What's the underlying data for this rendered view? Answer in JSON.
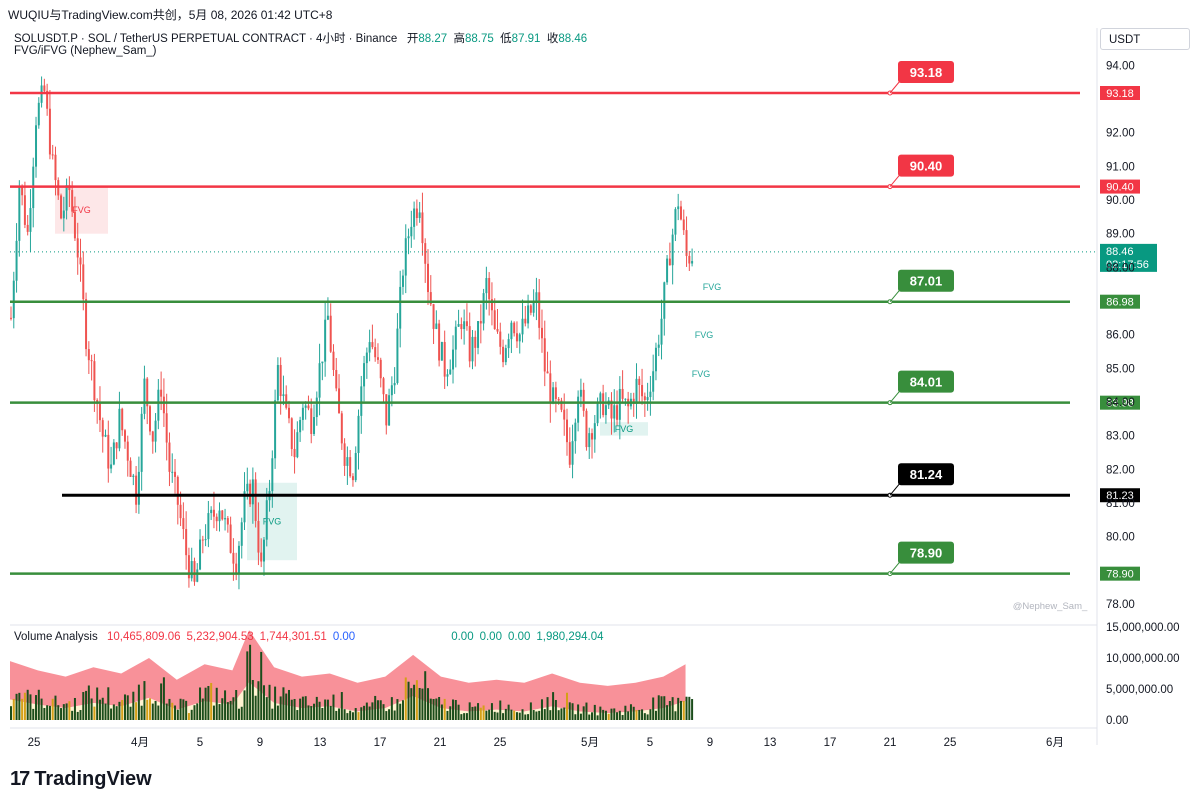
{
  "header": {
    "text": "WUQIU与TradingView.com共创，5月 08, 2026 01:42 UTC+8"
  },
  "symbol": {
    "name": "SOLUSDT.P · SOL / TetherUS PERPETUAL CONTRACT · 4小时 · Binance",
    "open_label": "开",
    "open": "88.27",
    "high_label": "高",
    "high": "88.75",
    "low_label": "低",
    "low": "87.91",
    "close_label": "收",
    "close": "88.46"
  },
  "indicator": {
    "name": "FVG/iFVG (Nephew_Sam_)"
  },
  "currency": {
    "label": "USDT"
  },
  "watermark": "@Nephew_Sam_",
  "volume_legend": {
    "title": "Volume Analysis",
    "values": [
      {
        "text": "10,465,809.06",
        "color": "#f23645"
      },
      {
        "text": "5,232,904.53",
        "color": "#f23645"
      },
      {
        "text": "1,744,301.51",
        "color": "#f23645"
      },
      {
        "text": "0.00",
        "color": "#2962ff"
      },
      {
        "text": "0.00",
        "color": "#089981"
      },
      {
        "text": "0.00",
        "color": "#089981"
      },
      {
        "text": "0.00",
        "color": "#089981"
      },
      {
        "text": "1,980,294.04",
        "color": "#089981"
      }
    ]
  },
  "logo": {
    "text": "TradingView",
    "mark": "17"
  },
  "colors": {
    "up": "#26a69a",
    "down": "#ef5350",
    "resistance": "#f23645",
    "support": "#388e3c",
    "pivot": "#000000"
  },
  "chart_data": {
    "type": "candlestick",
    "price_axis": {
      "min": 78.0,
      "max": 94.0,
      "ticks": [
        "94.00",
        "92.00",
        "91.00",
        "90.00",
        "89.00",
        "88.00",
        "86.00",
        "85.00",
        "84.00",
        "83.00",
        "82.00",
        "81.00",
        "80.00",
        "78.00"
      ]
    },
    "time_axis": {
      "ticks": [
        "25",
        "4月",
        "5",
        "9",
        "13",
        "17",
        "21",
        "25",
        "5月",
        "5",
        "9",
        "13",
        "17",
        "21",
        "25",
        "6月"
      ]
    },
    "volume_axis": {
      "ticks": [
        "15,000,000.00",
        "10,000,000.00",
        "5,000,000.00",
        "0.00"
      ]
    },
    "levels": [
      {
        "price": 93.18,
        "tag": "93.18",
        "axis_label": "93.18",
        "kind": "resistance"
      },
      {
        "price": 90.4,
        "tag": "90.40",
        "axis_label": "90.40",
        "kind": "resistance"
      },
      {
        "price": 86.98,
        "tag": "87.01",
        "axis_label": "86.98",
        "kind": "support"
      },
      {
        "price": 83.98,
        "tag": "84.01",
        "axis_label": "83.98",
        "kind": "support"
      },
      {
        "price": 81.23,
        "tag": "81.24",
        "axis_label": "81.23",
        "kind": "pivot"
      },
      {
        "price": 78.9,
        "tag": "78.90",
        "axis_label": "78.90",
        "kind": "support"
      }
    ],
    "last_price": {
      "price": 88.46,
      "label": "88.46",
      "countdown": "02:17:56"
    },
    "fvg_zones": [
      {
        "label": "FVG",
        "kind": "bearish",
        "price_top": 90.4,
        "price_bottom": 89.0
      },
      {
        "label": "FVG",
        "kind": "bullish",
        "price_top": 81.6,
        "price_bottom": 79.3
      },
      {
        "label": "FVG",
        "kind": "bullish",
        "price_top": 83.4,
        "price_bottom": 83.0
      }
    ],
    "fvg_labels": [
      "FVG",
      "FVG",
      "FVG"
    ],
    "close_path": [
      [
        0,
        86.5
      ],
      [
        3,
        90.5
      ],
      [
        6,
        89.0
      ],
      [
        9,
        92.5
      ],
      [
        12,
        93.2
      ],
      [
        15,
        91.0
      ],
      [
        18,
        89.5
      ],
      [
        21,
        90.3
      ],
      [
        24,
        88.5
      ],
      [
        27,
        86.0
      ],
      [
        30,
        84.5
      ],
      [
        33,
        83.0
      ],
      [
        36,
        82.0
      ],
      [
        39,
        83.5
      ],
      [
        42,
        82.5
      ],
      [
        45,
        81.3
      ],
      [
        48,
        84.5
      ],
      [
        51,
        83.0
      ],
      [
        54,
        84.5
      ],
      [
        57,
        82.0
      ],
      [
        60,
        81.0
      ],
      [
        63,
        79.5
      ],
      [
        66,
        78.5
      ],
      [
        69,
        80.0
      ],
      [
        72,
        80.5
      ],
      [
        75,
        81.0
      ],
      [
        78,
        80.0
      ],
      [
        81,
        79.3
      ],
      [
        84,
        81.0
      ],
      [
        87,
        81.5
      ],
      [
        90,
        79.0
      ],
      [
        93,
        81.5
      ],
      [
        96,
        85.0
      ],
      [
        99,
        83.5
      ],
      [
        102,
        82.5
      ],
      [
        105,
        84.0
      ],
      [
        108,
        83.5
      ],
      [
        111,
        85.0
      ],
      [
        114,
        86.5
      ],
      [
        117,
        84.0
      ],
      [
        120,
        82.5
      ],
      [
        123,
        82.0
      ],
      [
        126,
        84.5
      ],
      [
        129,
        86.0
      ],
      [
        132,
        85.0
      ],
      [
        135,
        83.5
      ],
      [
        138,
        85.0
      ],
      [
        141,
        88.0
      ],
      [
        144,
        89.5
      ],
      [
        147,
        90.0
      ],
      [
        150,
        87.5
      ],
      [
        153,
        86.0
      ],
      [
        156,
        85.0
      ],
      [
        159,
        85.5
      ],
      [
        162,
        86.5
      ],
      [
        165,
        85.5
      ],
      [
        168,
        86.0
      ],
      [
        171,
        87.5
      ],
      [
        174,
        86.0
      ],
      [
        177,
        85.5
      ],
      [
        180,
        86.5
      ],
      [
        183,
        86.0
      ],
      [
        186,
        86.5
      ],
      [
        189,
        87.0
      ],
      [
        192,
        85.0
      ],
      [
        195,
        84.0
      ],
      [
        198,
        83.5
      ],
      [
        201,
        82.5
      ],
      [
        204,
        84.5
      ],
      [
        207,
        83.0
      ],
      [
        210,
        83.5
      ],
      [
        213,
        84.0
      ],
      [
        216,
        83.5
      ],
      [
        219,
        84.0
      ],
      [
        222,
        83.8
      ],
      [
        225,
        84.5
      ],
      [
        228,
        84.0
      ],
      [
        231,
        85.0
      ],
      [
        234,
        86.5
      ],
      [
        237,
        88.5
      ],
      [
        240,
        90.0
      ],
      [
        243,
        88.3
      ],
      [
        246,
        88.46
      ]
    ],
    "volume": [
      {
        "x": 0,
        "v": 6.0
      },
      {
        "x": 10,
        "v": 4.5
      },
      {
        "x": 20,
        "v": 3.5
      },
      {
        "x": 30,
        "v": 5.0
      },
      {
        "x": 40,
        "v": 4.0
      },
      {
        "x": 50,
        "v": 6.5
      },
      {
        "x": 60,
        "v": 3.0
      },
      {
        "x": 70,
        "v": 5.5
      },
      {
        "x": 80,
        "v": 4.5
      },
      {
        "x": 86,
        "v": 11.0
      },
      {
        "x": 95,
        "v": 5.0
      },
      {
        "x": 105,
        "v": 3.5
      },
      {
        "x": 115,
        "v": 4.0
      },
      {
        "x": 125,
        "v": 2.5
      },
      {
        "x": 135,
        "v": 3.5
      },
      {
        "x": 145,
        "v": 7.0
      },
      {
        "x": 155,
        "v": 3.5
      },
      {
        "x": 165,
        "v": 2.5
      },
      {
        "x": 175,
        "v": 3.0
      },
      {
        "x": 185,
        "v": 2.5
      },
      {
        "x": 195,
        "v": 4.0
      },
      {
        "x": 205,
        "v": 2.5
      },
      {
        "x": 215,
        "v": 2.0
      },
      {
        "x": 225,
        "v": 2.5
      },
      {
        "x": 235,
        "v": 3.5
      },
      {
        "x": 243,
        "v": 5.5
      }
    ]
  }
}
